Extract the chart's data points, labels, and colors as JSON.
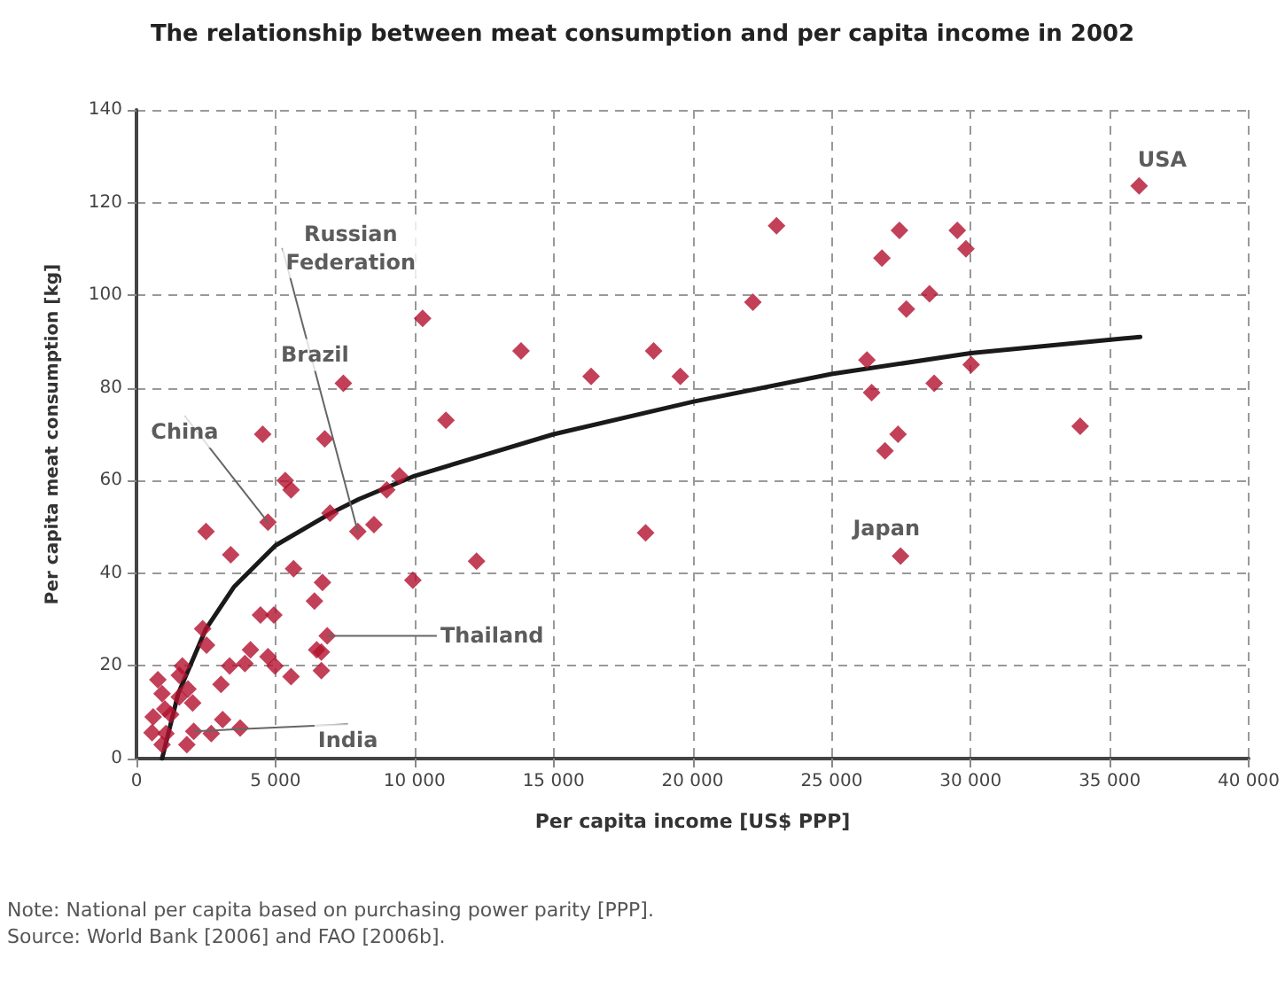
{
  "chart_data": {
    "type": "scatter",
    "title": "The relationship between meat consumption and per capita income in 2002",
    "xlabel": "Per capita income [US$ PPP]",
    "ylabel": "Per capita meat consumption [kg]",
    "xlim": [
      0,
      40000
    ],
    "ylim": [
      0,
      140
    ],
    "xticks": [
      0,
      {
        "value": 5000,
        "label": "5 000"
      },
      {
        "value": 10000,
        "label": "10 000"
      },
      {
        "value": 15000,
        "label": "15 000"
      },
      {
        "value": 20000,
        "label": "20 000"
      },
      {
        "value": 25000,
        "label": "25 000"
      },
      {
        "value": 30000,
        "label": "30 000"
      },
      {
        "value": 35000,
        "label": "35 000"
      },
      {
        "value": 40000,
        "label": "40 000"
      }
    ],
    "yticks": [
      0,
      20,
      40,
      60,
      80,
      100,
      120,
      140
    ],
    "grid": true,
    "series": [
      {
        "marker": "diamond",
        "color": "#b3122e",
        "x": [
          4540,
          6770,
          5350,
          5560,
          4730,
          6960,
          2500,
          3390,
          7960,
          8540,
          9460,
          9000,
          5650,
          6690,
          6400,
          9940,
          4460,
          4940,
          2380,
          2520,
          6860,
          6480,
          6650,
          6650,
          4100,
          3350,
          3900,
          4730,
          4980,
          5560,
          3040,
          1650,
          1540,
          770,
          1850,
          2020,
          920,
          600,
          1230,
          560,
          1060,
          3100,
          3730,
          2690,
          2060,
          1810,
          920,
          1020,
          1540,
          7440,
          10290,
          11130,
          13830,
          16350,
          18600,
          19560,
          22170,
          23020,
          18310,
          12230,
          27440,
          26810,
          29520,
          29830,
          28520,
          27690,
          26270,
          26440,
          28690,
          30020,
          27390,
          26920,
          33940,
          27480,
          36060
        ],
        "values": [
          70,
          69,
          60,
          58,
          51,
          53,
          49,
          44,
          49,
          50.5,
          61,
          58,
          41,
          38,
          34,
          38.5,
          31,
          31,
          28,
          24.5,
          26.5,
          23.5,
          23,
          19,
          23.5,
          20,
          20.5,
          22,
          20,
          17.7,
          16,
          20,
          18,
          17,
          15,
          12,
          14,
          9,
          9.5,
          5.6,
          5.4,
          8.4,
          6.6,
          5.4,
          5.9,
          3,
          3,
          10.7,
          13.3,
          81,
          95,
          73,
          88,
          82.5,
          88,
          82.5,
          98.5,
          115,
          48.7,
          42.6,
          114,
          108,
          114,
          110,
          100.3,
          97,
          86,
          79,
          81,
          85,
          70,
          66.4,
          71.7,
          43.7,
          123.6
        ]
      },
      {
        "type": "line",
        "marker": "none",
        "line_style": "solid",
        "color": "#1a1a1a",
        "x": [
          920,
          1500,
          2500,
          3500,
          5000,
          7000,
          8000,
          10000,
          15000,
          20000,
          25000,
          30000,
          36100
        ],
        "values": [
          0,
          14,
          28,
          37,
          46,
          53,
          56,
          61,
          70,
          77,
          83,
          87.5,
          91
        ]
      }
    ],
    "annotations": [
      {
        "text": "China",
        "x": 4730,
        "y": 51
      },
      {
        "text": "Brazil",
        "x": 7440,
        "y": 81
      },
      {
        "text": "Russian\nFederation",
        "x": 7960,
        "y": 49
      },
      {
        "text": "Thailand",
        "x": 6860,
        "y": 26.5
      },
      {
        "text": "India",
        "x": 2060,
        "y": 5.9
      },
      {
        "text": "Japan",
        "x": 27480,
        "y": 43.7
      },
      {
        "text": "USA",
        "x": 36060,
        "y": 123.6
      },
      "Note: National per capita based on purchasing power parity [PPP].",
      "Source: World Bank [2006] and FAO [2006b]."
    ]
  }
}
